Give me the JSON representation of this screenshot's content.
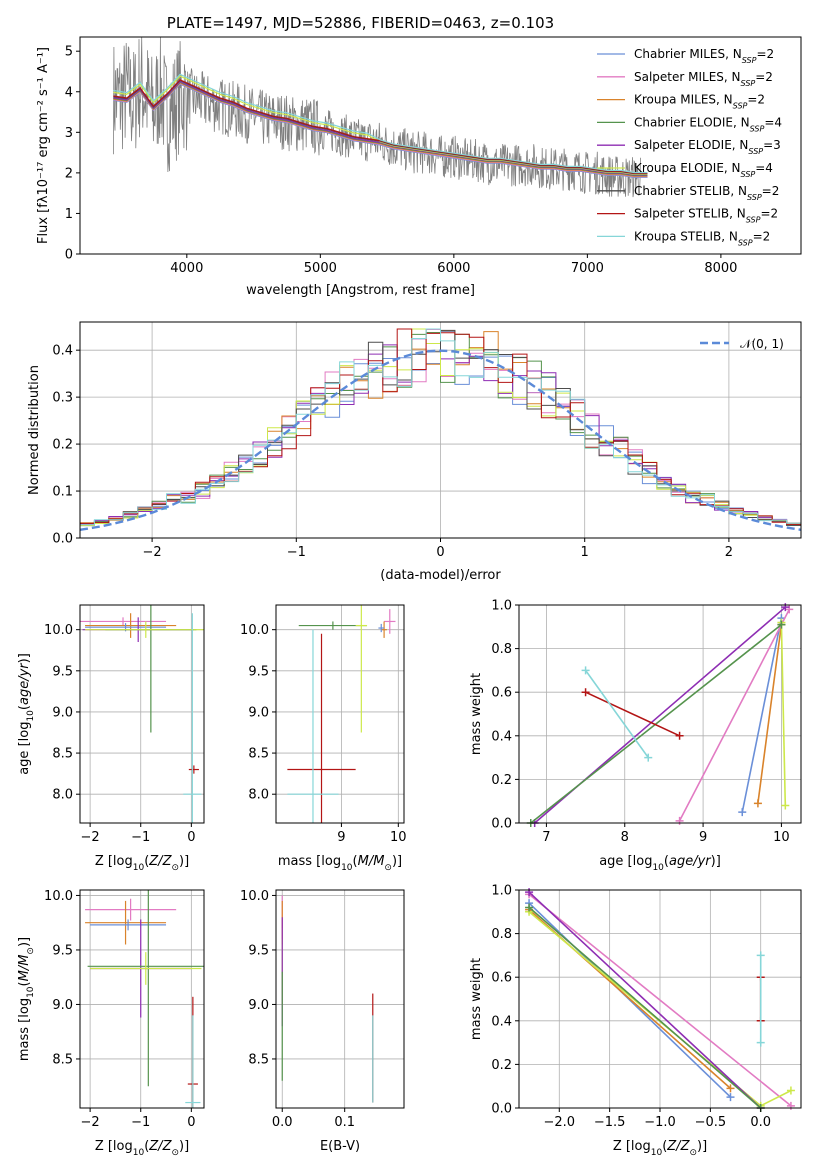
{
  "chart_data": [
    {
      "id": "spectrum",
      "type": "line",
      "title": "PLATE=1497, MJD=52886, FIBERID=0463, z=0.103",
      "xlabel": "wavelength [Angstrom, rest frame]",
      "ylabel": "Flux [fλ10⁻¹⁷ erg cm⁻² s⁻¹ A⁻¹]",
      "xlim": [
        3200,
        8600
      ],
      "ylim": [
        0,
        5.35
      ],
      "xticks": [
        4000,
        5000,
        6000,
        7000,
        8000
      ],
      "yticks": [
        0,
        1,
        2,
        3,
        4,
        5
      ],
      "grid": false,
      "legend_position": "top-right",
      "observed_series": {
        "name": "",
        "color": "#808080",
        "x": [
          3450,
          3500,
          3550,
          3600,
          3650,
          3700,
          3750,
          3800,
          3850,
          3900,
          3950,
          4000,
          4100,
          4200,
          4300,
          4400,
          4500,
          4600,
          4700,
          4800,
          4900,
          5000,
          5100,
          5200,
          5300,
          5400,
          5500,
          5600,
          5700,
          5800,
          5900,
          6000,
          6100,
          6200,
          6300,
          6400,
          6500,
          6600,
          6700,
          6800,
          6900,
          7000,
          7100,
          7200,
          7300,
          7400
        ],
        "y": [
          3.9,
          3.8,
          4.0,
          3.7,
          4.2,
          3.9,
          3.5,
          4.1,
          3.4,
          3.6,
          3.9,
          3.9,
          3.8,
          3.7,
          3.6,
          3.5,
          3.4,
          3.3,
          3.3,
          3.2,
          3.2,
          3.1,
          3.0,
          2.9,
          2.8,
          2.8,
          2.7,
          2.6,
          2.5,
          2.5,
          2.4,
          2.4,
          2.3,
          2.3,
          2.2,
          2.2,
          2.2,
          2.2,
          2.1,
          2.1,
          2.1,
          2.0,
          2.0,
          1.9,
          1.9,
          1.9
        ],
        "noise_amplitude": 0.9
      },
      "model_series": [
        {
          "name": "Chabrier MILES, N_SSP=2",
          "color": "#6a8fd8"
        },
        {
          "name": "Salpeter MILES, N_SSP=2",
          "color": "#e27bc3"
        },
        {
          "name": "Kroupa MILES, N_SSP=2",
          "color": "#d9832b"
        },
        {
          "name": "Chabrier ELODIE, N_SSP=4",
          "color": "#55934d"
        },
        {
          "name": "Salpeter ELODIE, N_SSP=3",
          "color": "#8e2db3"
        },
        {
          "name": "Kroupa ELODIE, N_SSP=4",
          "color": "#cde84a"
        },
        {
          "name": "Chabrier STELIB, N_SSP=2",
          "color": "#4d4d4d"
        },
        {
          "name": "Salpeter STELIB, N_SSP=2",
          "color": "#b31515"
        },
        {
          "name": "Kroupa STELIB, N_SSP=2",
          "color": "#86d6d8"
        }
      ],
      "model_curve": {
        "x": [
          3450,
          3550,
          3650,
          3750,
          3850,
          3950,
          4050,
          4150,
          4250,
          4350,
          4450,
          4550,
          4650,
          4750,
          4850,
          4950,
          5050,
          5150,
          5250,
          5350,
          5450,
          5550,
          5650,
          5750,
          5850,
          5950,
          6050,
          6150,
          6250,
          6350,
          6450,
          6550,
          6650,
          6750,
          6850,
          6950,
          7050,
          7150,
          7250,
          7350,
          7450
        ],
        "y": [
          3.85,
          3.8,
          4.05,
          3.6,
          3.9,
          4.25,
          4.1,
          3.95,
          3.8,
          3.7,
          3.55,
          3.45,
          3.35,
          3.3,
          3.2,
          3.1,
          3.05,
          2.95,
          2.85,
          2.8,
          2.75,
          2.65,
          2.6,
          2.55,
          2.5,
          2.45,
          2.4,
          2.35,
          2.3,
          2.3,
          2.25,
          2.2,
          2.15,
          2.15,
          2.1,
          2.1,
          2.05,
          2.0,
          2.0,
          1.95,
          1.95
        ]
      }
    },
    {
      "id": "residuals",
      "type": "step",
      "xlabel": "(data-model)/error",
      "ylabel": "Normed distribution",
      "xlim": [
        -2.5,
        2.5
      ],
      "ylim": [
        0,
        0.46
      ],
      "xticks": [
        -2,
        -1,
        0,
        1,
        2
      ],
      "yticks": [
        0.0,
        0.1,
        0.2,
        0.3,
        0.4
      ],
      "grid": true,
      "legend_position": "top-right",
      "reference": {
        "name": "𝒩(0, 1)",
        "color": "#5b8ad8",
        "mean": 0,
        "sigma": 1
      }
    },
    {
      "id": "age-vs-Z",
      "type": "errorbar",
      "xlabel": "Z [log10(Z/Z⊙)]",
      "ylabel": "age  [log10(age/yr)]",
      "xlim": [
        -2.2,
        0.25
      ],
      "ylim": [
        7.65,
        10.3
      ],
      "xticks": [
        -2,
        -1,
        0
      ],
      "yticks": [
        8.0,
        8.5,
        9.0,
        9.5,
        10.0
      ],
      "grid": true
    },
    {
      "id": "age-vs-mass",
      "type": "errorbar",
      "xlabel": "mass [log10(M/M⊙)]",
      "ylabel": "",
      "xlim": [
        7.85,
        10.1
      ],
      "ylim": [
        7.65,
        10.3
      ],
      "xticks": [
        9,
        10
      ],
      "yticks": [
        8.0,
        8.5,
        9.0,
        9.5,
        10.0
      ],
      "grid": true
    },
    {
      "id": "weight-vs-age",
      "type": "line",
      "xlabel": "age  [log10(age/yr)]",
      "ylabel": "mass weight",
      "xlim": [
        6.65,
        10.25
      ],
      "ylim": [
        0,
        1.0
      ],
      "xticks": [
        7,
        8,
        9,
        10
      ],
      "yticks": [
        0.0,
        0.2,
        0.4,
        0.6,
        0.8,
        1.0
      ],
      "grid": true,
      "series": [
        {
          "color": "#6a8fd8",
          "x": [
            9.5,
            10.0
          ],
          "y": [
            0.05,
            0.94
          ]
        },
        {
          "color": "#d9832b",
          "x": [
            9.7,
            10.0
          ],
          "y": [
            0.09,
            0.91
          ]
        },
        {
          "color": "#e27bc3",
          "x": [
            8.7,
            10.1
          ],
          "y": [
            0.01,
            0.98
          ]
        },
        {
          "color": "#cde84a",
          "x": [
            10.05,
            10.0
          ],
          "y": [
            0.08,
            0.92
          ]
        },
        {
          "color": "#8e2db3",
          "x": [
            6.85,
            10.05
          ],
          "y": [
            0.0,
            0.99
          ]
        },
        {
          "color": "#55934d",
          "x": [
            6.8,
            10.0
          ],
          "y": [
            0.0,
            0.91
          ]
        },
        {
          "color": "#b31515",
          "x": [
            7.5,
            8.7
          ],
          "y": [
            0.6,
            0.4
          ]
        },
        {
          "color": "#86d6d8",
          "x": [
            7.5,
            8.3
          ],
          "y": [
            0.7,
            0.3
          ]
        }
      ]
    },
    {
      "id": "mass-vs-Z",
      "type": "errorbar",
      "xlabel": "Z [log10(Z/Z⊙)]",
      "ylabel": "mass [log10(M/M⊙)]",
      "xlim": [
        -2.2,
        0.25
      ],
      "ylim": [
        8.05,
        10.05
      ],
      "xticks": [
        -2,
        -1,
        0
      ],
      "yticks": [
        8.5,
        9.0,
        9.5,
        10.0
      ],
      "grid": true
    },
    {
      "id": "mass-vs-ebv",
      "type": "errorbar",
      "xlabel": "E(B-V)",
      "ylabel": "",
      "xlim": [
        -0.01,
        0.195
      ],
      "ylim": [
        8.05,
        10.05
      ],
      "xticks": [
        0.0,
        0.1
      ],
      "yticks": [
        8.5,
        9.0,
        9.5,
        10.0
      ],
      "grid": true
    },
    {
      "id": "weight-vs-Z",
      "type": "line",
      "xlabel": "Z [log10(Z/Z⊙)]",
      "ylabel": "mass weight",
      "xlim": [
        -2.4,
        0.4
      ],
      "ylim": [
        0,
        1.0
      ],
      "xticks": [
        -2.0,
        -1.5,
        -1.0,
        -0.5,
        0.0
      ],
      "yticks": [
        0.0,
        0.2,
        0.4,
        0.6,
        0.8,
        1.0
      ],
      "grid": true,
      "series": [
        {
          "color": "#6a8fd8",
          "x": [
            -2.3,
            -0.3
          ],
          "y": [
            0.94,
            0.05
          ]
        },
        {
          "color": "#d9832b",
          "x": [
            -2.3,
            -0.3
          ],
          "y": [
            0.91,
            0.09
          ]
        },
        {
          "color": "#e27bc3",
          "x": [
            -2.3,
            0.3
          ],
          "y": [
            0.98,
            0.01
          ]
        },
        {
          "color": "#cde84a",
          "x": [
            -2.3,
            0.0,
            0.3
          ],
          "y": [
            0.9,
            0.01,
            0.08
          ]
        },
        {
          "color": "#8e2db3",
          "x": [
            -2.3,
            0.0
          ],
          "y": [
            0.99,
            0.0
          ]
        },
        {
          "color": "#55934d",
          "x": [
            -2.3,
            0.0
          ],
          "y": [
            0.92,
            0.0
          ]
        },
        {
          "color": "#b31515",
          "x": [
            0.0,
            0.0
          ],
          "y": [
            0.6,
            0.4
          ]
        },
        {
          "color": "#86d6d8",
          "x": [
            0.0,
            0.0
          ],
          "y": [
            0.7,
            0.3
          ]
        }
      ]
    }
  ],
  "errorbar_data": {
    "age_vs_Z": [
      {
        "color": "#e27bc3",
        "x": -1.35,
        "y": 10.1,
        "xerr": 0.85,
        "yerr": 0.05
      },
      {
        "color": "#d9832b",
        "x": -1.2,
        "y": 10.05,
        "xerr": 0.9,
        "yerr": 0.15
      },
      {
        "color": "#6a8fd8",
        "x": -1.3,
        "y": 10.03,
        "xerr": 0.8,
        "yerr": 0.05
      },
      {
        "color": "#8e2db3",
        "x": -1.05,
        "y": 10.0,
        "xerr": 1.1,
        "yerr": 0.15
      },
      {
        "color": "#55934d",
        "x": -0.8,
        "y": 10.0,
        "xerr": 0.9,
        "yerr": 1.25
      },
      {
        "color": "#cde84a",
        "x": -0.9,
        "y": 10.0,
        "xerr": 1.2,
        "yerr": 0.1
      },
      {
        "color": "#b31515",
        "x": 0.05,
        "y": 8.3,
        "xerr": 0.1,
        "yerr": 0.05
      },
      {
        "color": "#86d6d8",
        "x": 0.02,
        "y": 8.0,
        "xerr": 0.18,
        "yerr": 2.2
      }
    ],
    "age_vs_mass": [
      {
        "color": "#e27bc3",
        "x": 9.85,
        "y": 10.1,
        "xerr": 0.1,
        "yerr": 0.15
      },
      {
        "color": "#d9832b",
        "x": 9.75,
        "y": 10.0,
        "xerr": 0.05,
        "yerr": 0.1
      },
      {
        "color": "#6a8fd8",
        "x": 9.7,
        "y": 10.02,
        "xerr": 0.05,
        "yerr": 0.05
      },
      {
        "color": "#55934d",
        "x": 8.85,
        "y": 10.05,
        "xerr": 0.6,
        "yerr": 0.05
      },
      {
        "color": "#cde84a",
        "x": 9.35,
        "y": 10.05,
        "xerr": 0.1,
        "yerr": 1.3
      },
      {
        "color": "#b31515",
        "x": 8.65,
        "y": 8.3,
        "xerr": 0.6,
        "yerr": 1.65
      },
      {
        "color": "#86d6d8",
        "x": 8.5,
        "y": 8.0,
        "xerr": 0.45,
        "yerr": 2.0
      }
    ],
    "mass_vs_Z": [
      {
        "color": "#e27bc3",
        "x": -1.2,
        "y": 9.87,
        "xerr": 0.9,
        "yerr": 0.1
      },
      {
        "color": "#d9832b",
        "x": -1.3,
        "y": 9.75,
        "xerr": 0.8,
        "yerr": 0.2
      },
      {
        "color": "#6a8fd8",
        "x": -1.25,
        "y": 9.73,
        "xerr": 0.75,
        "yerr": 0.05
      },
      {
        "color": "#8e2db3",
        "x": -1.0,
        "y": 9.33,
        "xerr": 1.0,
        "yerr": 0.45
      },
      {
        "color": "#55934d",
        "x": -0.85,
        "y": 9.35,
        "xerr": 1.2,
        "yerr": 1.1
      },
      {
        "color": "#cde84a",
        "x": -0.9,
        "y": 9.33,
        "xerr": 1.1,
        "yerr": 0.15
      },
      {
        "color": "#b31515",
        "x": 0.03,
        "y": 8.27,
        "xerr": 0.1,
        "yerr": 0.8
      },
      {
        "color": "#86d6d8",
        "x": 0.03,
        "y": 8.1,
        "xerr": 0.15,
        "yerr": 0.8
      }
    ],
    "mass_vs_ebv": [
      {
        "color": "#e27bc3",
        "x": 0.0,
        "y": 9.85,
        "xerr": 0.0,
        "yerr": 0.15
      },
      {
        "color": "#d9832b",
        "x": 0.0,
        "y": 9.75,
        "xerr": 0.0,
        "yerr": 0.2
      },
      {
        "color": "#cde84a",
        "x": 0.0,
        "y": 9.3,
        "xerr": 0.0,
        "yerr": 0.3
      },
      {
        "color": "#8e2db3",
        "x": 0.0,
        "y": 9.3,
        "xerr": 0.0,
        "yerr": 0.5
      },
      {
        "color": "#55934d",
        "x": 0.0,
        "y": 8.8,
        "xerr": 0.0,
        "yerr": 0.5
      },
      {
        "color": "#b31515",
        "x": 0.145,
        "y": 8.6,
        "xerr": 0.0,
        "yerr": 0.5
      },
      {
        "color": "#86d6d8",
        "x": 0.145,
        "y": 8.5,
        "xerr": 0.0,
        "yerr": 0.4
      }
    ]
  }
}
